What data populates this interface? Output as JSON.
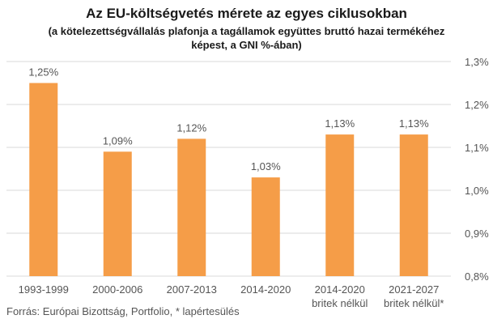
{
  "title": "Az EU-költségvetés mérete az egyes ciklusokban",
  "subtitle": "(a kötelezettségvállalás plafonja a tagállamok együttes bruttó hazai termékéhez képest, a GNI %-ában)",
  "source": "Forrás: Európai Bizottság, Portfolio, * lapértesülés",
  "colors": {
    "bar": "#F59D48",
    "grid": "#D9D9D9",
    "text": "#555555"
  },
  "chart_data": {
    "type": "bar",
    "categories": [
      [
        "1993-1999"
      ],
      [
        "2000-2006"
      ],
      [
        "2007-2013"
      ],
      [
        "2014-2020"
      ],
      [
        "2014-2020",
        "britek nélkül"
      ],
      [
        "2021-2027",
        "britek nélkül*"
      ]
    ],
    "values": [
      1.25,
      1.09,
      1.12,
      1.03,
      1.13,
      1.13
    ],
    "data_labels": [
      "1,25%",
      "1,09%",
      "1,12%",
      "1,03%",
      "1,13%",
      "1,13%"
    ],
    "ylim": [
      0.8,
      1.3
    ],
    "y_ticks": [
      0.8,
      0.9,
      1.0,
      1.1,
      1.2,
      1.3
    ],
    "y_tick_labels": [
      "0,8%",
      "0,9%",
      "1,0%",
      "1,1%",
      "1,2%",
      "1,3%"
    ],
    "y_axis_side": "right",
    "grid": true,
    "legend": "none"
  }
}
